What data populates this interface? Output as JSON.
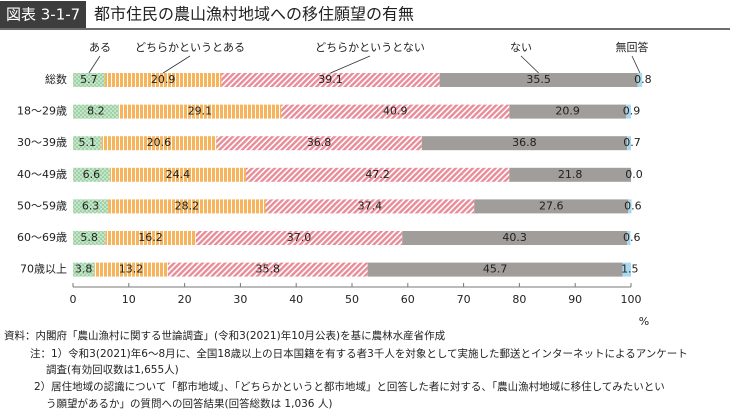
{
  "chart_data": {
    "type": "stacked-bar-horizontal",
    "figure_label": "図表 3-1-7",
    "title": "都市住民の農山漁村地域への移住願望の有無",
    "categories": [
      "総数",
      "18～29歳",
      "30～39歳",
      "40～49歳",
      "50～59歳",
      "60～69歳",
      "70歳以上"
    ],
    "series": [
      {
        "name": "ある",
        "color": "#9fd3a6",
        "pattern": "dots",
        "values": [
          5.7,
          8.2,
          5.1,
          6.6,
          6.3,
          5.8,
          3.8
        ],
        "value_labels": [
          "5.7",
          "8.2",
          "5.1",
          "6.6",
          "6.3",
          "5.8",
          "3.8"
        ]
      },
      {
        "name": "どちらかというとある",
        "color": "#f6b45c",
        "pattern": "vertical",
        "values": [
          20.9,
          29.1,
          20.6,
          24.4,
          28.2,
          16.2,
          13.2
        ],
        "value_labels": [
          "20.9",
          "29.1",
          "20.6",
          "24.4",
          "28.2",
          "16.2",
          "13.2"
        ]
      },
      {
        "name": "どちらかというとない",
        "color": "#e88c98",
        "pattern": "diagonal",
        "values": [
          39.1,
          40.9,
          36.8,
          47.2,
          37.4,
          37.0,
          35.8
        ],
        "value_labels": [
          "39.1",
          "40.9",
          "36.8",
          "47.2",
          "37.4",
          "37.0",
          "35.8"
        ]
      },
      {
        "name": "ない",
        "color": "#a19d9b",
        "values": [
          35.5,
          20.9,
          36.8,
          21.8,
          27.6,
          40.3,
          45.7
        ],
        "value_labels": [
          "35.5",
          "20.9",
          "36.8",
          "21.8",
          "27.6",
          "40.3",
          "45.7"
        ]
      },
      {
        "name": "無回答",
        "color": "#a9d9ee",
        "values": [
          0.8,
          0.9,
          0.7,
          0.0,
          0.6,
          0.6,
          1.5
        ],
        "value_labels": [
          "0.8",
          "0.9",
          "0.7",
          "0.0",
          "0.6",
          "0.6",
          "1.5"
        ]
      }
    ],
    "xlim": [
      0,
      100
    ],
    "xticks": [
      0,
      10,
      20,
      30,
      40,
      50,
      60,
      70,
      80,
      90,
      100
    ],
    "x_unit": "%",
    "notes": [
      "資料：内閣府「農山漁村に関する世論調査」(令和3(2021)年10月公表)を基に農林水産省作成",
      "注：1）令和3(2021)年6～8月に、全国18歳以上の日本国籍を有する者3千人を対象として実施した郵送とインターネットによるアンケート",
      "調査(有効回収数は1,655人)",
      "2）居住地域の認識について「都市地域」、「どちらかというと都市地域」と回答した者に対する、「農山漁村地域に移住してみたいとい",
      "う願望があるか」の質問への回答結果(回答総数は 1,036 人)"
    ]
  }
}
